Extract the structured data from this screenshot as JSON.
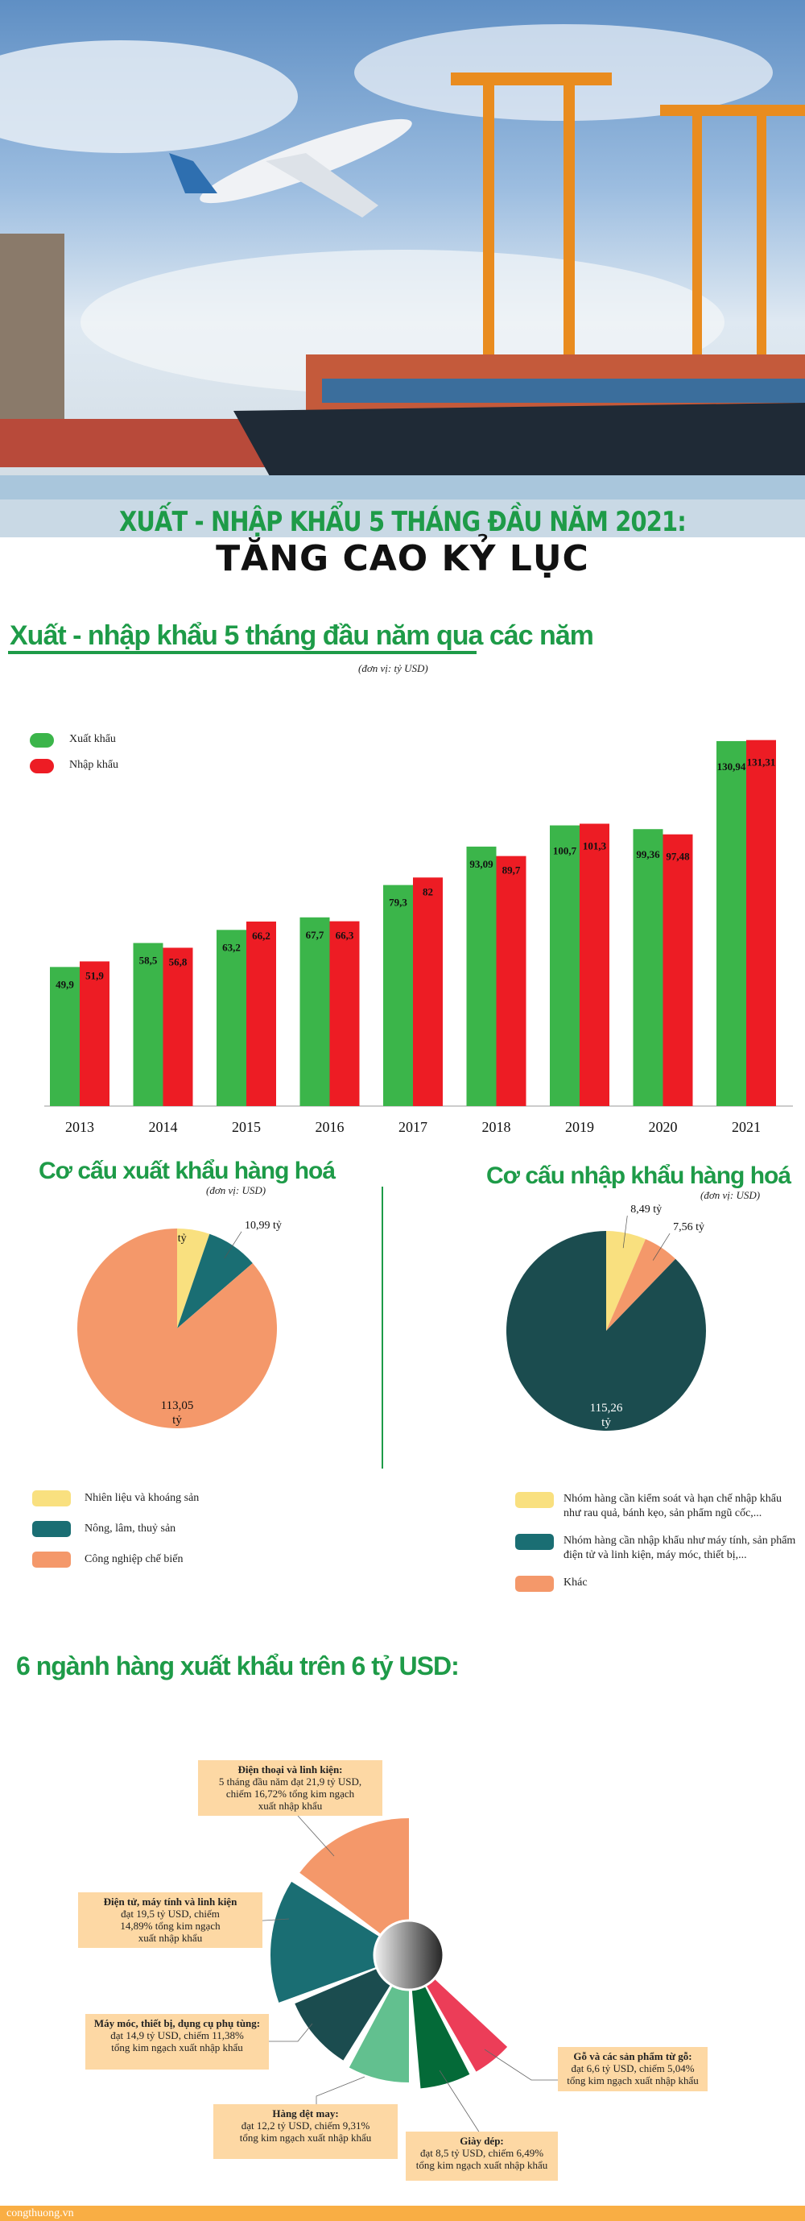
{
  "header": {
    "title_line1": "XUẤT - NHẬP KHẨU 5 THÁNG ĐẦU NĂM 2021:",
    "title_line2": "TĂNG CAO KỶ LỤC"
  },
  "section1": {
    "title": "Xuất - nhập khẩu 5 tháng đầu năm qua các năm",
    "unit": "(đơn vị: tỷ USD)"
  },
  "section2": {
    "export_title": "Cơ cấu xuất khẩu hàng hoá",
    "export_unit": "(đơn vị: USD)",
    "import_title": "Cơ cấu nhập khẩu hàng hoá",
    "import_unit": "(đơn vị: USD)"
  },
  "section3": {
    "title": "6 ngành hàng xuất khẩu trên 6 tỷ USD:"
  },
  "footer": {
    "site": "congthuong.vn"
  },
  "chart_data": [
    {
      "type": "bar",
      "categories": [
        "2013",
        "2014",
        "2015",
        "2016",
        "2017",
        "2018",
        "2019",
        "2020",
        "2021"
      ],
      "series": [
        {
          "name": "Xuất khẩu",
          "color": "#3bb54a",
          "values": [
            49.9,
            58.5,
            63.2,
            67.7,
            79.3,
            93.09,
            100.7,
            99.36,
            130.94
          ],
          "labels": [
            "49,9",
            "58,5",
            "63,2",
            "67,7",
            "79,3",
            "93,09",
            "100,7",
            "99,36",
            "130,94"
          ]
        },
        {
          "name": "Nhập khẩu",
          "color": "#ed1c24",
          "values": [
            51.9,
            56.8,
            66.2,
            66.3,
            82,
            89.7,
            101.3,
            97.48,
            131.31
          ],
          "labels": [
            "51,9",
            "56,8",
            "66,2",
            "66,3",
            "82",
            "89,7",
            "101,3",
            "97,48",
            "131,31"
          ]
        }
      ],
      "legend": "top-left",
      "grid": false
    },
    {
      "type": "pie",
      "slices": [
        {
          "name": "Nhiên liệu và khoáng sản",
          "value": 6.9,
          "label": "6,9 tỷ",
          "color": "#f9e07f"
        },
        {
          "name": "Nông, lâm, thuỷ sản",
          "value": 10.99,
          "label": "10,99 tỷ",
          "color": "#1a6e73"
        },
        {
          "name": "Công nghiệp chế biến",
          "value": 113.05,
          "label": "113,05 tỷ",
          "color": "#f4986a"
        }
      ]
    },
    {
      "type": "pie",
      "slices": [
        {
          "name": "Nhóm hàng cần kiểm soát và hạn chế nhập khẩu như rau quả, bánh kẹo, sản phẩm ngũ cốc,...",
          "value": 8.49,
          "label": "8,49 tỷ",
          "color": "#f9e07f"
        },
        {
          "name": "Khác",
          "value": 7.56,
          "label": "7,56 tỷ",
          "color": "#f4986a"
        },
        {
          "name": "Nhóm hàng cần nhập khẩu như máy tính, sản phẩm điện tử và linh kiện, máy móc, thiết bị,...",
          "value": 115.26,
          "label": "115,26 tỷ",
          "color": "#1b4c4f"
        }
      ],
      "legend_colors": [
        "#f9e07f",
        "#1a6e73",
        "#f4986a"
      ]
    },
    {
      "type": "pie",
      "items": [
        {
          "name": "Điện thoại và linh kiện:",
          "text": [
            "5 tháng đầu năm đạt 21,9 tỷ USD,",
            "chiếm 16,72% tổng kim ngạch",
            "xuất nhập khẩu"
          ],
          "value": 21.9,
          "percent": 16.72,
          "color": "#f4986a"
        },
        {
          "name": "Điện tử, máy tính và linh kiện",
          "text": [
            "đạt 19,5 tỷ USD, chiếm",
            "14,89% tổng kim ngạch",
            "xuất nhập khẩu"
          ],
          "value": 19.5,
          "percent": 14.89,
          "color": "#1a6e73"
        },
        {
          "name": "Máy móc, thiết bị, dụng cụ phụ tùng:",
          "text": [
            "đạt 14,9 tỷ USD, chiếm 11,38%",
            "tổng kim ngạch xuất nhập khẩu"
          ],
          "value": 14.9,
          "percent": 11.38,
          "color": "#1b4c4f"
        },
        {
          "name": "Hàng dệt may:",
          "text": [
            "đạt 12,2 tỷ USD, chiếm 9,31%",
            "tổng kim ngạch xuất nhập khẩu"
          ],
          "value": 12.2,
          "percent": 9.31,
          "color": "#62c08f"
        },
        {
          "name": "Giày dép:",
          "text": [
            "đạt 8,5 tỷ USD, chiếm 6,49%",
            "tổng kim ngạch xuất nhập khẩu"
          ],
          "value": 8.5,
          "percent": 6.49,
          "color": "#046a38"
        },
        {
          "name": "Gỗ và các sản phẩm từ gỗ:",
          "text": [
            "đạt 6,6 tỷ USD, chiếm 5,04%",
            "tổng kim ngạch xuất nhập khẩu"
          ],
          "value": 6.6,
          "percent": 5.04,
          "color": "#ec3d58"
        }
      ]
    }
  ]
}
